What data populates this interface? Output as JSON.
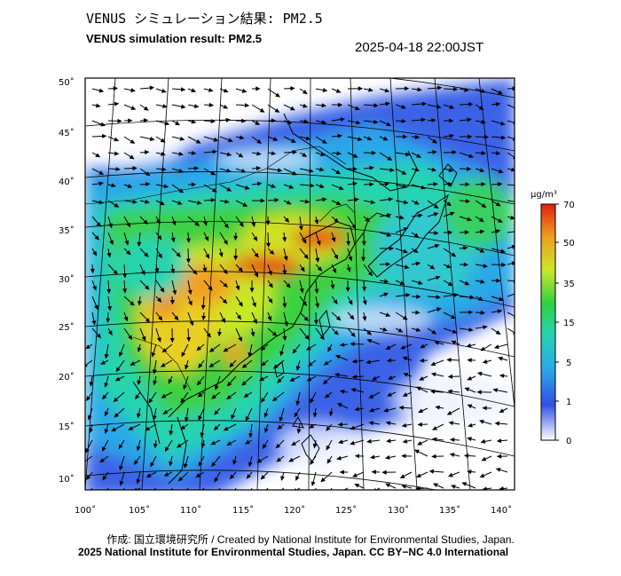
{
  "header": {
    "title_jp": "VENUS シミュレーション結果: PM2.5",
    "title_en": "VENUS simulation result: PM2.5",
    "datetime": "2025-04-18 22:00JST"
  },
  "map": {
    "lat_labels": [
      "50˚",
      "45˚",
      "40˚",
      "35˚",
      "30˚",
      "25˚",
      "20˚",
      "15˚",
      "10˚"
    ],
    "lon_labels": [
      "100˚",
      "105˚",
      "110˚",
      "115˚",
      "120˚",
      "125˚",
      "130˚",
      "135˚",
      "140˚"
    ]
  },
  "colorbar": {
    "unit": "μg/m³",
    "ticks": [
      "70",
      "50",
      "35",
      "15",
      "5",
      "1",
      "0"
    ],
    "colors": [
      "#ffffff",
      "#3050e6",
      "#2aa8e8",
      "#26d4b0",
      "#30d040",
      "#c8e828",
      "#f0a020",
      "#e02010"
    ]
  },
  "footer": {
    "credit": "作成: 国立環境研究所 / Created by National Institute for Environmental Studies, Japan.",
    "license": "2025 National Institute for Environmental Studies, Japan. CC BY−NC 4.0 International"
  }
}
